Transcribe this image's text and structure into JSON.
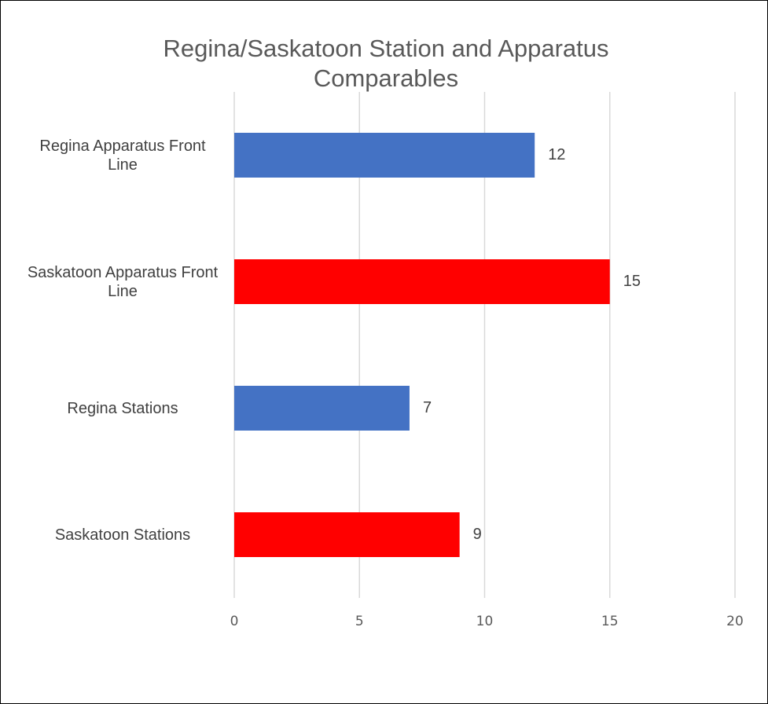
{
  "chart_data": {
    "type": "bar",
    "orientation": "horizontal",
    "title": "Regina/Saskatoon Station and Apparatus Comparables",
    "categories": [
      "Regina Apparatus Front Line",
      "Saskatoon Apparatus Front Line",
      "Regina Stations",
      "Saskatoon Stations"
    ],
    "values": [
      12,
      15,
      7,
      9
    ],
    "colors": [
      "#4472c4",
      "#ff0000",
      "#4472c4",
      "#ff0000"
    ],
    "xlim": [
      0,
      20
    ],
    "xticks": [
      0,
      5,
      10,
      15,
      20
    ],
    "grid": true
  }
}
